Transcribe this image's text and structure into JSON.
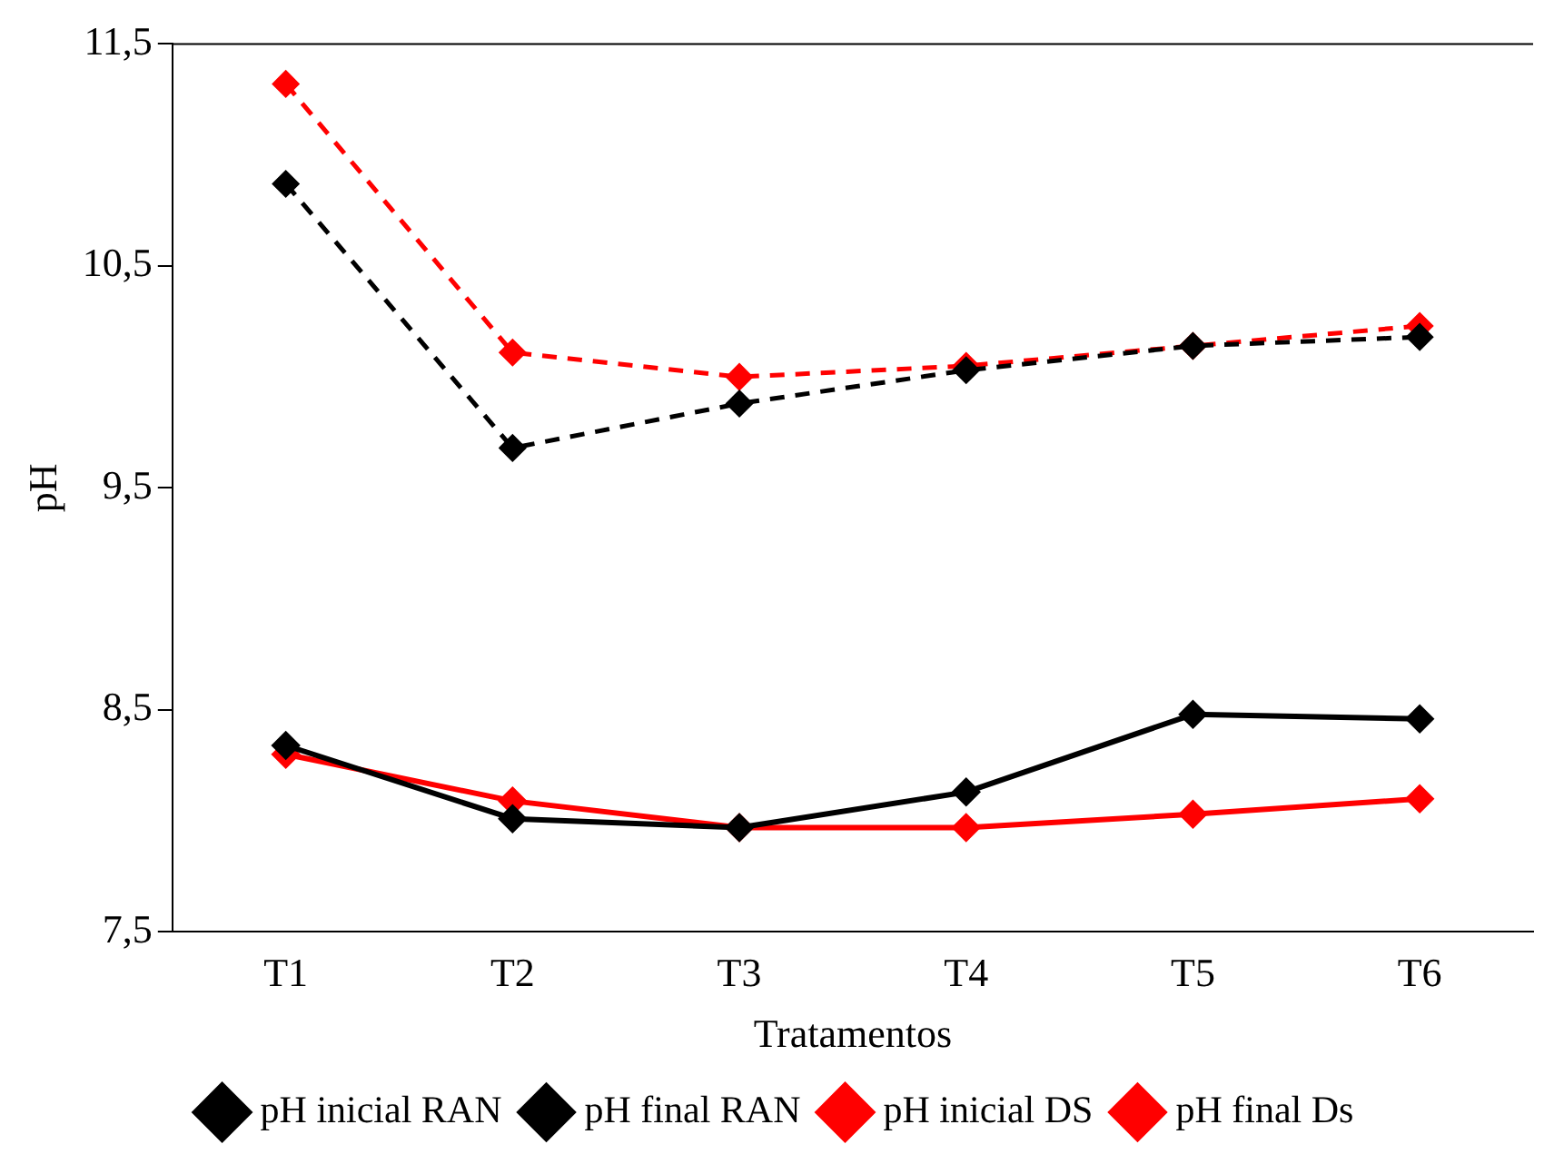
{
  "chart_data": {
    "type": "line",
    "xlabel": "Tratamentos",
    "ylabel": "pH",
    "categories": [
      "T1",
      "T2",
      "T3",
      "T4",
      "T5",
      "T6"
    ],
    "series": [
      {
        "name": "pH inicial RAN",
        "color": "#000000",
        "values": [
          8.34,
          8.01,
          7.97,
          8.13,
          8.48,
          8.46
        ],
        "line_style": "solid"
      },
      {
        "name": "pH final RAN",
        "color": "#000000",
        "values": [
          10.87,
          9.68,
          9.88,
          10.03,
          10.14,
          10.18
        ],
        "line_style": "dashed"
      },
      {
        "name": "pH inicial DS",
        "color": "#ff0000",
        "values": [
          8.3,
          8.09,
          7.97,
          7.97,
          8.03,
          8.1
        ],
        "line_style": "solid"
      },
      {
        "name": "pH final Ds",
        "color": "#ff0000",
        "values": [
          11.32,
          10.11,
          10.0,
          10.05,
          10.14,
          10.23
        ],
        "line_style": "dashed"
      }
    ],
    "ylim": [
      7.5,
      11.5
    ],
    "yticks": [
      {
        "value": 7.5,
        "label": "7,5"
      },
      {
        "value": 8.5,
        "label": "8,5"
      },
      {
        "value": 9.5,
        "label": "9,5"
      },
      {
        "value": 10.5,
        "label": "10,5"
      },
      {
        "value": 11.5,
        "label": "11,5"
      }
    ],
    "grid": false,
    "legend": "bottom",
    "marker": "diamond"
  }
}
